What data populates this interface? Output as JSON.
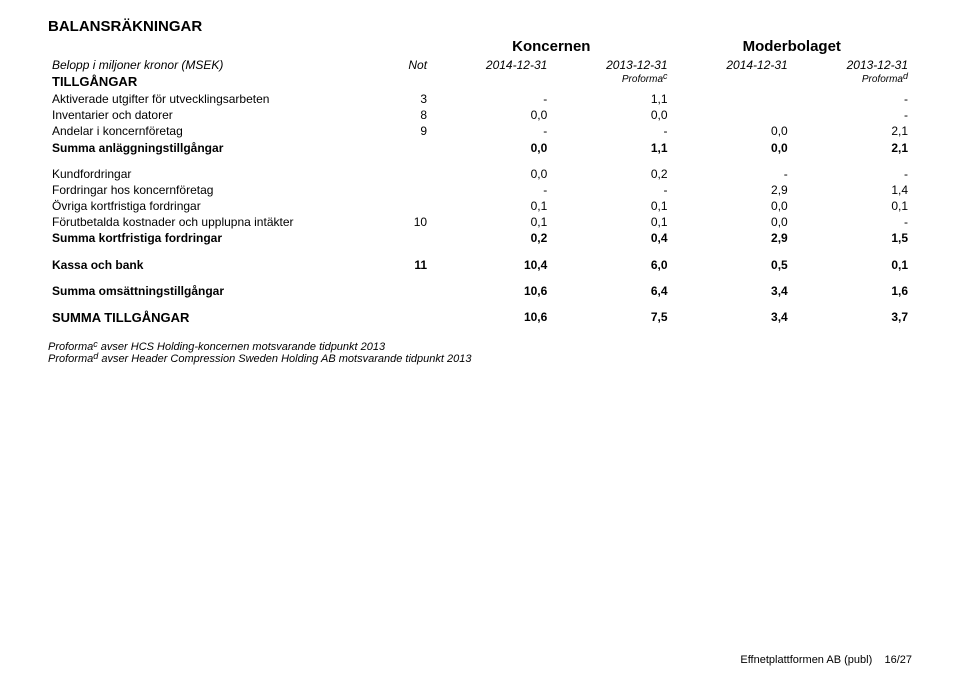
{
  "title": "BALANSRÄKNINGAR",
  "subheader": {
    "left_label": "Belopp i miljoner kronor (MSEK)",
    "not_label": "Not",
    "group1": "Koncernen",
    "group2": "Moderbolaget",
    "col1": "2014-12-31",
    "col2": "2013-12-31",
    "col2_sub": "Proforma",
    "col2_sup": "c",
    "col3": "2014-12-31",
    "col4": "2013-12-31",
    "col4_sub": "Proforma",
    "col4_sup": "d"
  },
  "section_tillgangar": "TILLGÅNGAR",
  "rows_fixed": [
    {
      "label": "Aktiverade utgifter för utvecklingsarbeten",
      "not": "3",
      "v1": "-",
      "v2": "1,1",
      "v3": "",
      "v4": "-"
    },
    {
      "label": "Inventarier och datorer",
      "not": "8",
      "v1": "0,0",
      "v2": "0,0",
      "v3": "",
      "v4": "-"
    },
    {
      "label": "Andelar i koncernföretag",
      "not": "9",
      "v1": "-",
      "v2": "-",
      "v3": "0,0",
      "v4": "2,1"
    }
  ],
  "sum_fixed": {
    "label": "Summa anläggningstillgångar",
    "v1": "0,0",
    "v2": "1,1",
    "v3": "0,0",
    "v4": "2,1"
  },
  "rows_curr": [
    {
      "label": "Kundfordringar",
      "not": "",
      "v1": "0,0",
      "v2": "0,2",
      "v3": "-",
      "v4": "-"
    },
    {
      "label": "Fordringar hos koncernföretag",
      "not": "",
      "v1": "-",
      "v2": "-",
      "v3": "2,9",
      "v4": "1,4"
    },
    {
      "label": "Övriga kortfristiga fordringar",
      "not": "",
      "v1": "0,1",
      "v2": "0,1",
      "v3": "0,0",
      "v4": "0,1"
    },
    {
      "label": "Förutbetalda kostnader och upplupna intäkter",
      "not": "10",
      "v1": "0,1",
      "v2": "0,1",
      "v3": "0,0",
      "v4": "-"
    }
  ],
  "sum_curr": {
    "label": "Summa kortfristiga fordringar",
    "v1": "0,2",
    "v2": "0,4",
    "v3": "2,9",
    "v4": "1,5"
  },
  "kassa": {
    "label": "Kassa och bank",
    "not": "11",
    "v1": "10,4",
    "v2": "6,0",
    "v3": "0,5",
    "v4": "0,1"
  },
  "sum_oms": {
    "label": "Summa omsättningstillgångar",
    "v1": "10,6",
    "v2": "6,4",
    "v3": "3,4",
    "v4": "1,6"
  },
  "sum_tot": {
    "label": "SUMMA TILLGÅNGAR",
    "v1": "10,6",
    "v2": "7,5",
    "v3": "3,4",
    "v4": "3,7"
  },
  "footnotes": {
    "c_pre": "Proforma",
    "c_sup": "c",
    "c_txt": " avser HCS Holding-koncernen motsvarande tidpunkt 2013",
    "d_pre": "Proforma",
    "d_sup": "d",
    "d_txt": " avser Header Compression Sweden Holding AB motsvarande tidpunkt 2013"
  },
  "footer": {
    "company": "Effnetplattformen AB (publ)",
    "page": "16/27"
  }
}
